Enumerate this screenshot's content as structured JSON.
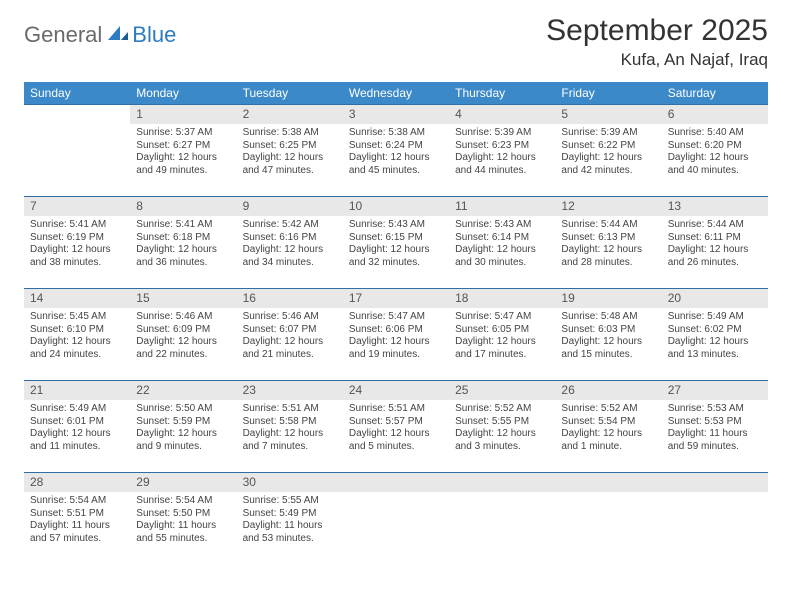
{
  "logo": {
    "part1": "General",
    "part2": "Blue"
  },
  "title": "September 2025",
  "location": "Kufa, An Najaf, Iraq",
  "colors": {
    "header_bg": "#3b89c9",
    "daynum_bg": "#e8e8e8",
    "row_border": "#2f6fa3",
    "logo_gray": "#6a6a6a",
    "logo_blue": "#2f7bbf",
    "text": "#333333",
    "cell_text": "#444444"
  },
  "typography": {
    "title_fontsize": 30,
    "location_fontsize": 17,
    "header_fontsize": 12,
    "daynum_fontsize": 12,
    "cell_fontsize": 10
  },
  "day_headers": [
    "Sunday",
    "Monday",
    "Tuesday",
    "Wednesday",
    "Thursday",
    "Friday",
    "Saturday"
  ],
  "weeks": [
    [
      null,
      {
        "n": "1",
        "sr": "Sunrise: 5:37 AM",
        "ss": "Sunset: 6:27 PM",
        "dl": "Daylight: 12 hours and 49 minutes."
      },
      {
        "n": "2",
        "sr": "Sunrise: 5:38 AM",
        "ss": "Sunset: 6:25 PM",
        "dl": "Daylight: 12 hours and 47 minutes."
      },
      {
        "n": "3",
        "sr": "Sunrise: 5:38 AM",
        "ss": "Sunset: 6:24 PM",
        "dl": "Daylight: 12 hours and 45 minutes."
      },
      {
        "n": "4",
        "sr": "Sunrise: 5:39 AM",
        "ss": "Sunset: 6:23 PM",
        "dl": "Daylight: 12 hours and 44 minutes."
      },
      {
        "n": "5",
        "sr": "Sunrise: 5:39 AM",
        "ss": "Sunset: 6:22 PM",
        "dl": "Daylight: 12 hours and 42 minutes."
      },
      {
        "n": "6",
        "sr": "Sunrise: 5:40 AM",
        "ss": "Sunset: 6:20 PM",
        "dl": "Daylight: 12 hours and 40 minutes."
      }
    ],
    [
      {
        "n": "7",
        "sr": "Sunrise: 5:41 AM",
        "ss": "Sunset: 6:19 PM",
        "dl": "Daylight: 12 hours and 38 minutes."
      },
      {
        "n": "8",
        "sr": "Sunrise: 5:41 AM",
        "ss": "Sunset: 6:18 PM",
        "dl": "Daylight: 12 hours and 36 minutes."
      },
      {
        "n": "9",
        "sr": "Sunrise: 5:42 AM",
        "ss": "Sunset: 6:16 PM",
        "dl": "Daylight: 12 hours and 34 minutes."
      },
      {
        "n": "10",
        "sr": "Sunrise: 5:43 AM",
        "ss": "Sunset: 6:15 PM",
        "dl": "Daylight: 12 hours and 32 minutes."
      },
      {
        "n": "11",
        "sr": "Sunrise: 5:43 AM",
        "ss": "Sunset: 6:14 PM",
        "dl": "Daylight: 12 hours and 30 minutes."
      },
      {
        "n": "12",
        "sr": "Sunrise: 5:44 AM",
        "ss": "Sunset: 6:13 PM",
        "dl": "Daylight: 12 hours and 28 minutes."
      },
      {
        "n": "13",
        "sr": "Sunrise: 5:44 AM",
        "ss": "Sunset: 6:11 PM",
        "dl": "Daylight: 12 hours and 26 minutes."
      }
    ],
    [
      {
        "n": "14",
        "sr": "Sunrise: 5:45 AM",
        "ss": "Sunset: 6:10 PM",
        "dl": "Daylight: 12 hours and 24 minutes."
      },
      {
        "n": "15",
        "sr": "Sunrise: 5:46 AM",
        "ss": "Sunset: 6:09 PM",
        "dl": "Daylight: 12 hours and 22 minutes."
      },
      {
        "n": "16",
        "sr": "Sunrise: 5:46 AM",
        "ss": "Sunset: 6:07 PM",
        "dl": "Daylight: 12 hours and 21 minutes."
      },
      {
        "n": "17",
        "sr": "Sunrise: 5:47 AM",
        "ss": "Sunset: 6:06 PM",
        "dl": "Daylight: 12 hours and 19 minutes."
      },
      {
        "n": "18",
        "sr": "Sunrise: 5:47 AM",
        "ss": "Sunset: 6:05 PM",
        "dl": "Daylight: 12 hours and 17 minutes."
      },
      {
        "n": "19",
        "sr": "Sunrise: 5:48 AM",
        "ss": "Sunset: 6:03 PM",
        "dl": "Daylight: 12 hours and 15 minutes."
      },
      {
        "n": "20",
        "sr": "Sunrise: 5:49 AM",
        "ss": "Sunset: 6:02 PM",
        "dl": "Daylight: 12 hours and 13 minutes."
      }
    ],
    [
      {
        "n": "21",
        "sr": "Sunrise: 5:49 AM",
        "ss": "Sunset: 6:01 PM",
        "dl": "Daylight: 12 hours and 11 minutes."
      },
      {
        "n": "22",
        "sr": "Sunrise: 5:50 AM",
        "ss": "Sunset: 5:59 PM",
        "dl": "Daylight: 12 hours and 9 minutes."
      },
      {
        "n": "23",
        "sr": "Sunrise: 5:51 AM",
        "ss": "Sunset: 5:58 PM",
        "dl": "Daylight: 12 hours and 7 minutes."
      },
      {
        "n": "24",
        "sr": "Sunrise: 5:51 AM",
        "ss": "Sunset: 5:57 PM",
        "dl": "Daylight: 12 hours and 5 minutes."
      },
      {
        "n": "25",
        "sr": "Sunrise: 5:52 AM",
        "ss": "Sunset: 5:55 PM",
        "dl": "Daylight: 12 hours and 3 minutes."
      },
      {
        "n": "26",
        "sr": "Sunrise: 5:52 AM",
        "ss": "Sunset: 5:54 PM",
        "dl": "Daylight: 12 hours and 1 minute."
      },
      {
        "n": "27",
        "sr": "Sunrise: 5:53 AM",
        "ss": "Sunset: 5:53 PM",
        "dl": "Daylight: 11 hours and 59 minutes."
      }
    ],
    [
      {
        "n": "28",
        "sr": "Sunrise: 5:54 AM",
        "ss": "Sunset: 5:51 PM",
        "dl": "Daylight: 11 hours and 57 minutes."
      },
      {
        "n": "29",
        "sr": "Sunrise: 5:54 AM",
        "ss": "Sunset: 5:50 PM",
        "dl": "Daylight: 11 hours and 55 minutes."
      },
      {
        "n": "30",
        "sr": "Sunrise: 5:55 AM",
        "ss": "Sunset: 5:49 PM",
        "dl": "Daylight: 11 hours and 53 minutes."
      },
      null,
      null,
      null,
      null
    ]
  ]
}
